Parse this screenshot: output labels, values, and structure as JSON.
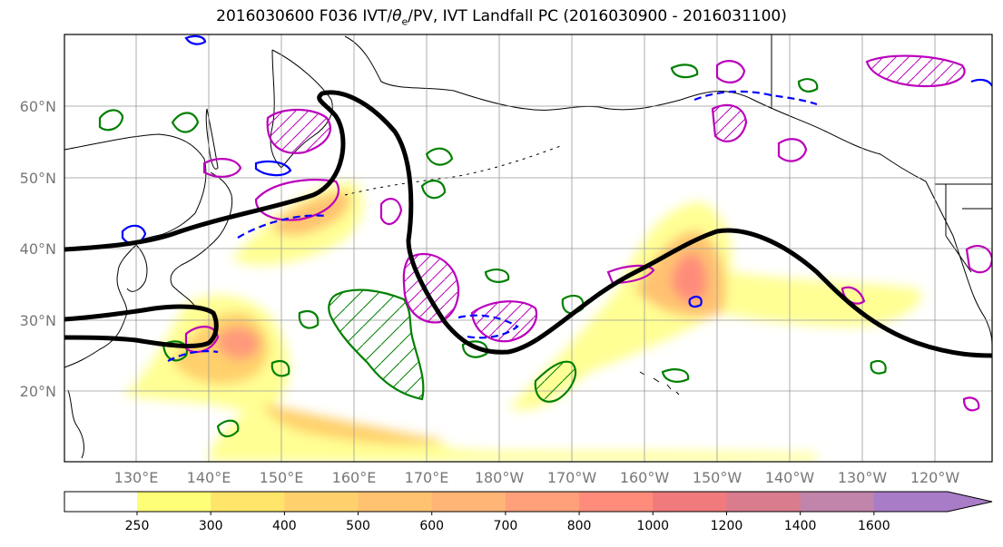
{
  "title": {
    "prefix": "2016030600 F036 IVT/",
    "theta_symbol": "θ",
    "theta_subscript": "e",
    "suffix": "/PV, IVT Landfall PC (2016030900 - 2016031100)"
  },
  "lat_labels": [
    "60°N",
    "50°N",
    "40°N",
    "30°N",
    "20°N"
  ],
  "lon_labels": [
    "130°E",
    "140°E",
    "150°E",
    "160°E",
    "170°E",
    "180°W",
    "170°W",
    "160°W",
    "150°W",
    "140°W",
    "130°W",
    "120°W"
  ],
  "colorbar": {
    "levels": [
      "250",
      "300",
      "400",
      "500",
      "600",
      "700",
      "800",
      "1000",
      "1200",
      "1400",
      "1600"
    ],
    "colors": [
      "#ffff77",
      "#ffe46a",
      "#ffd06c",
      "#ffc271",
      "#ffb576",
      "#ffa07a",
      "#ff8c7a",
      "#f07a7c",
      "#d97c8e",
      "#c184aa",
      "#a87cc6",
      "#a87cc6"
    ]
  },
  "colors": {
    "ivt_fill": "#ffd06c",
    "ivt_max": "#ff8c7a",
    "pc_contour": "#000000",
    "pv_contour": "#bb00bb",
    "theta_contour": "#008000",
    "negative_contour": "#0000ff"
  }
}
